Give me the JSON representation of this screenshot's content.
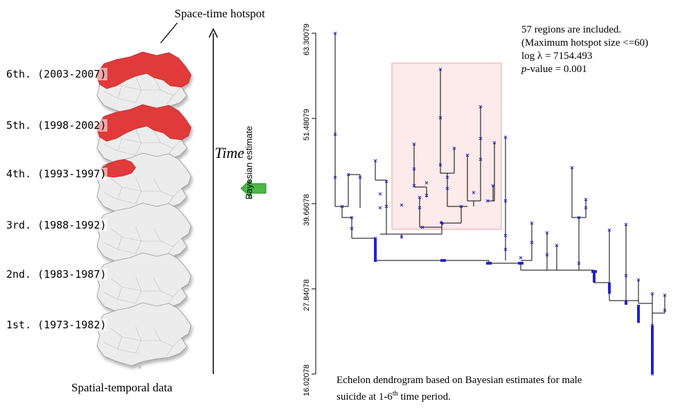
{
  "left_panel": {
    "hotspot_label": "Space-time hotspot",
    "time_label": "Time",
    "bottom_label": "Spatial-temporal  data",
    "periods": [
      {
        "label": "6th. (2003-2007)",
        "hot_level": 2
      },
      {
        "label": "5th. (1998-2002)",
        "hot_level": 2
      },
      {
        "label": "4th. (1993-1997)",
        "hot_level": 1
      },
      {
        "label": "3rd. (1988-1992)",
        "hot_level": 0
      },
      {
        "label": "2nd. (1983-1987)",
        "hot_level": 0
      },
      {
        "label": "1st. (1973-1982)",
        "hot_level": 0
      }
    ]
  },
  "dendrogram": {
    "ylabel": "Bayesian estimate",
    "yticks": [
      "63.30079",
      "51.48079",
      "39.66078",
      "27.84078",
      "16.02078"
    ],
    "ylim": [
      16.02078,
      63.30079
    ],
    "info_lines": [
      "57 regions are included.",
      "(Maximum hotspot size <=60)",
      "log λ = 7154.493"
    ],
    "pvalue_label": "p",
    "pvalue_rest": "-value = 0.001",
    "caption_line1": "Echelon dendrogram based on Bayesian estimates for male",
    "caption_line2_a": "suicide at 1-6",
    "caption_sup": "th",
    "caption_line2_b": " time period."
  },
  "colors": {
    "hotspot": "#e03a3a",
    "map_fill": "#ececec",
    "arrow_green": "#4cb848",
    "marker_blue": "#2222cc",
    "highlight_fill": "#fdeaea",
    "highlight_stroke": "#e8a0a0"
  }
}
